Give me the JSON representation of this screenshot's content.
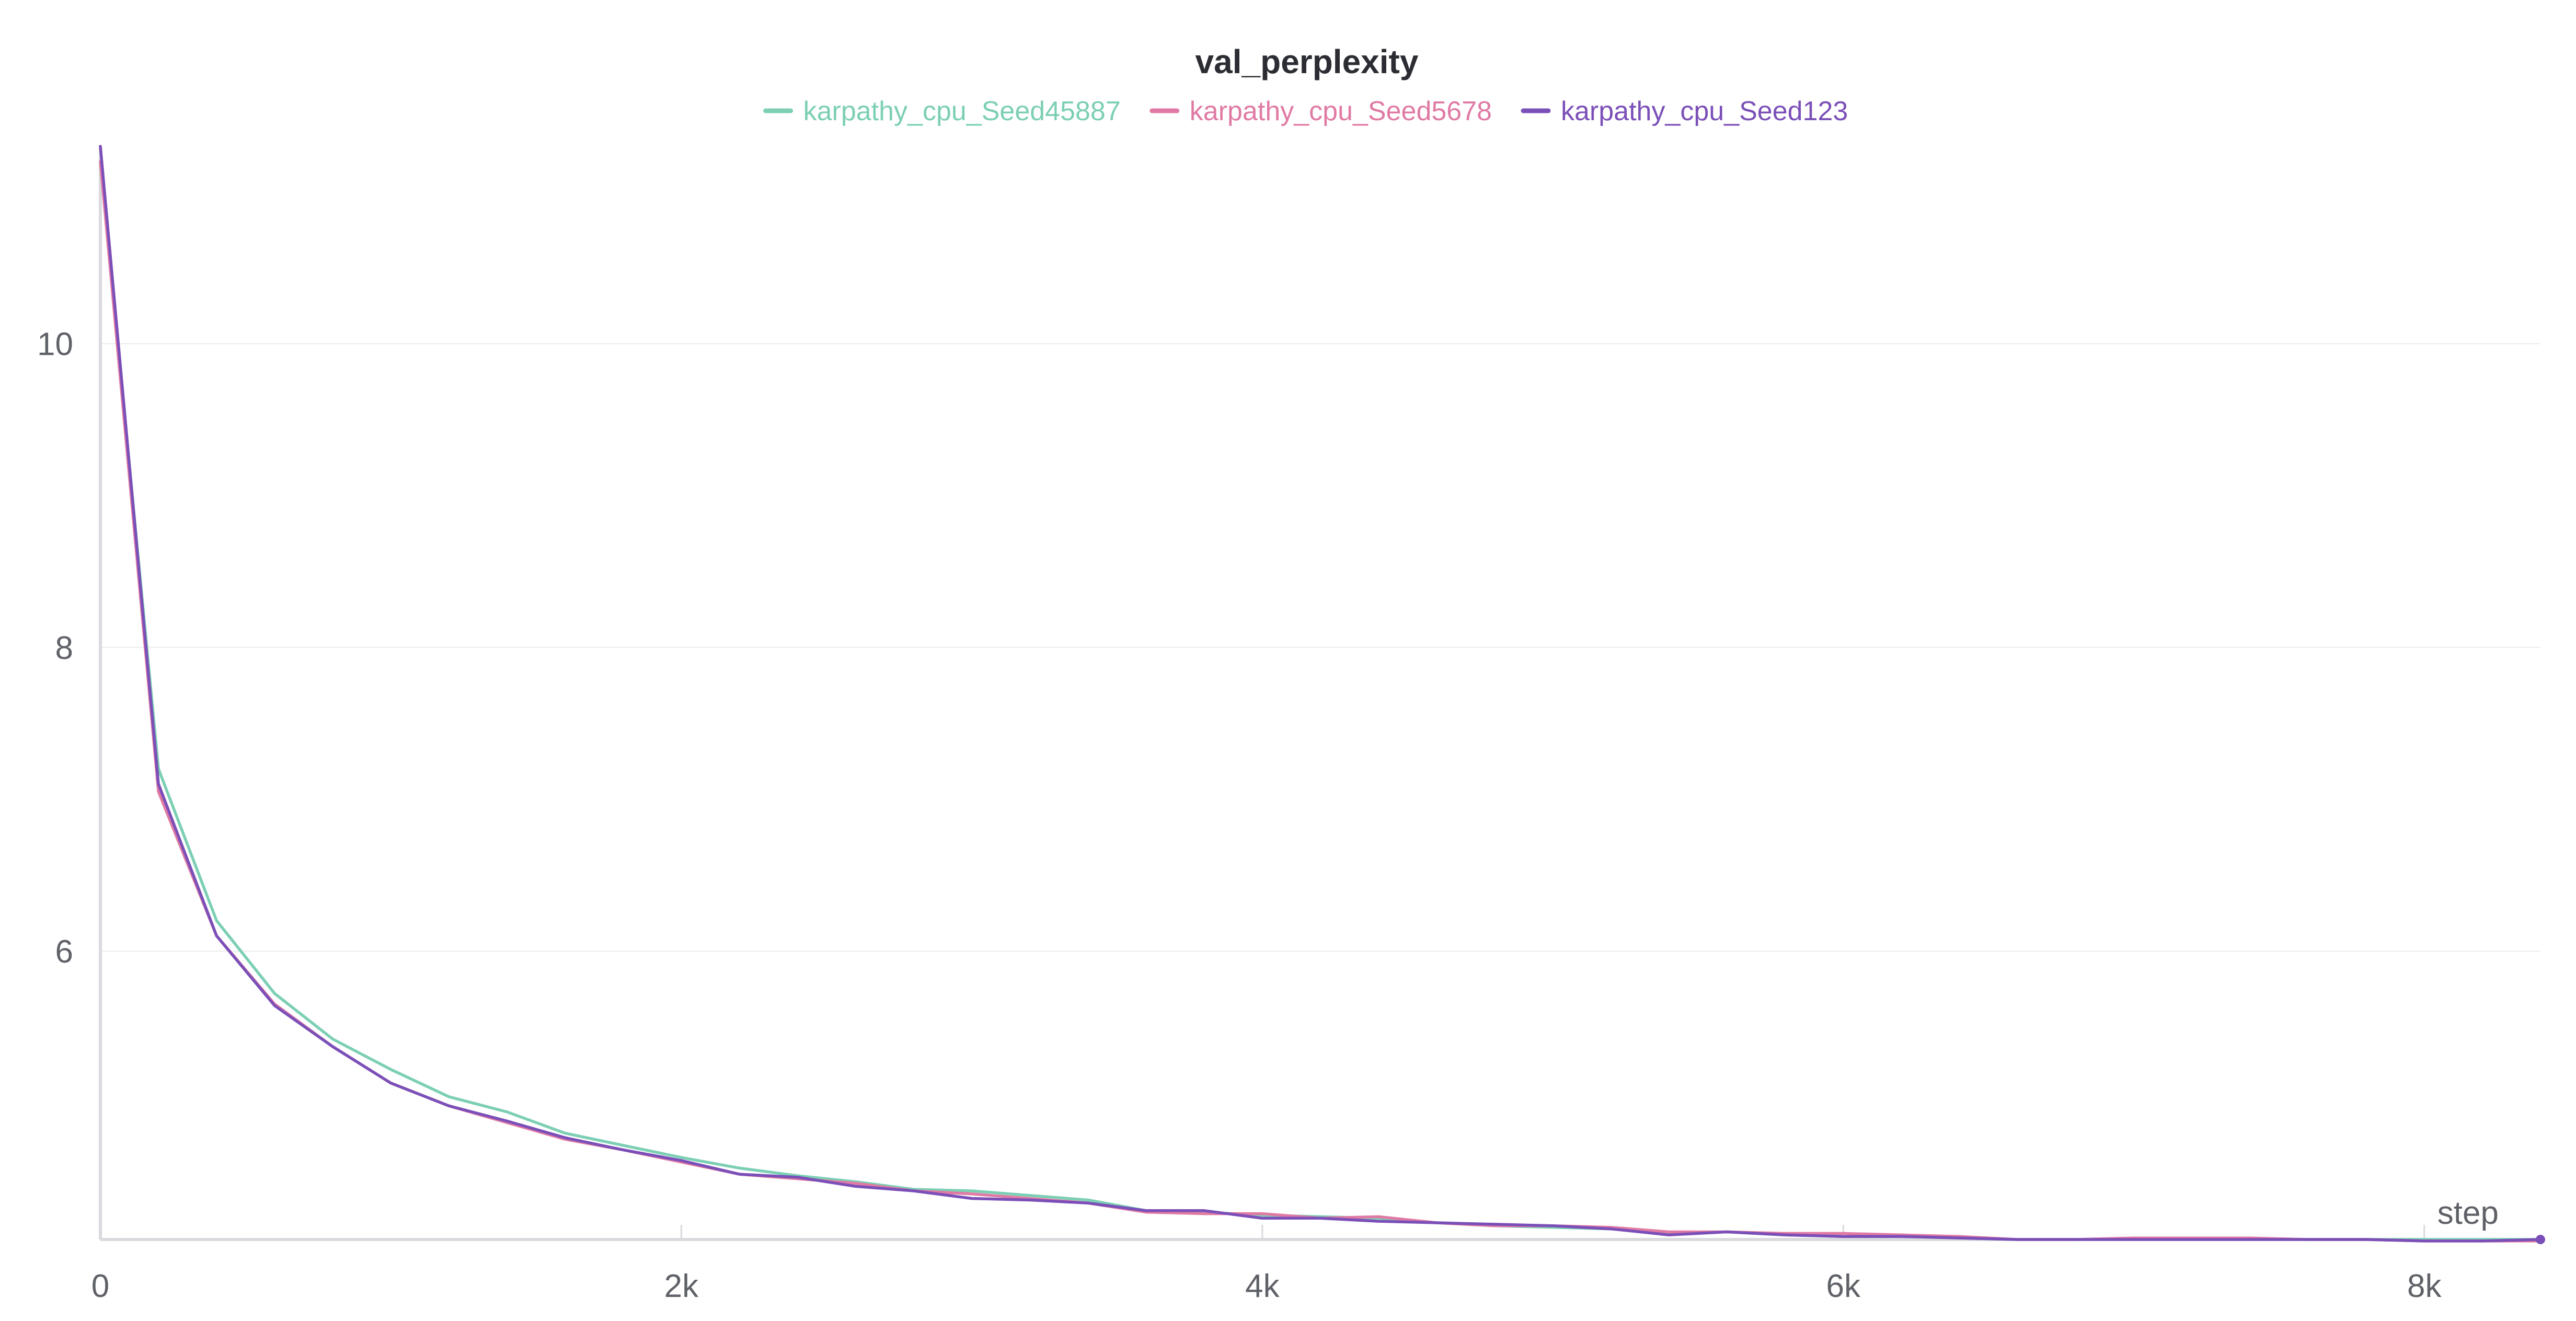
{
  "chart_data": {
    "type": "line",
    "title": "val_perplexity",
    "xlabel": "step",
    "ylabel": "",
    "xlim": [
      0,
      8400
    ],
    "ylim": [
      4.1,
      11.3
    ],
    "x_ticks": [
      0,
      2000,
      4000,
      6000,
      8000
    ],
    "x_tick_labels": [
      "0",
      "2k",
      "4k",
      "6k",
      "8k"
    ],
    "y_ticks": [
      6,
      8,
      10
    ],
    "y_tick_labels": [
      "6",
      "8",
      "10"
    ],
    "grid": true,
    "legend_position": "top-center",
    "x": [
      0,
      200,
      400,
      600,
      800,
      1000,
      1200,
      1400,
      1600,
      1800,
      2000,
      2200,
      2400,
      2600,
      2800,
      3000,
      3200,
      3400,
      3600,
      3800,
      4000,
      4200,
      4400,
      4600,
      4800,
      5000,
      5200,
      5400,
      5600,
      5800,
      6000,
      6200,
      6400,
      6600,
      6800,
      7000,
      7200,
      7400,
      7600,
      7800,
      8000,
      8200,
      8400
    ],
    "series": [
      {
        "name": "karpathy_cpu_Seed45887",
        "color": "#7ccfb4",
        "values": [
          11.2,
          7.2,
          6.2,
          5.72,
          5.42,
          5.22,
          5.04,
          4.94,
          4.8,
          4.72,
          4.64,
          4.57,
          4.52,
          4.48,
          4.43,
          4.42,
          4.39,
          4.36,
          4.29,
          4.28,
          4.26,
          4.25,
          4.24,
          4.21,
          4.19,
          4.18,
          4.17,
          4.14,
          4.15,
          4.13,
          4.12,
          4.12,
          4.11,
          4.1,
          4.1,
          4.1,
          4.1,
          4.1,
          4.1,
          4.1,
          4.1,
          4.1,
          4.1
        ]
      },
      {
        "name": "karpathy_cpu_Seed5678",
        "color": "#e07aa4",
        "values": [
          11.2,
          7.05,
          6.1,
          5.65,
          5.37,
          5.13,
          4.98,
          4.87,
          4.76,
          4.69,
          4.61,
          4.53,
          4.5,
          4.47,
          4.42,
          4.4,
          4.37,
          4.34,
          4.28,
          4.27,
          4.27,
          4.24,
          4.25,
          4.21,
          4.19,
          4.19,
          4.18,
          4.15,
          4.15,
          4.14,
          4.14,
          4.13,
          4.12,
          4.1,
          4.1,
          4.11,
          4.11,
          4.11,
          4.1,
          4.1,
          4.09,
          4.09,
          4.09
        ]
      },
      {
        "name": "karpathy_cpu_Seed123",
        "color": "#7b4fb8",
        "values": [
          11.3,
          7.1,
          6.1,
          5.64,
          5.37,
          5.13,
          4.98,
          4.88,
          4.77,
          4.69,
          4.62,
          4.53,
          4.51,
          4.45,
          4.42,
          4.37,
          4.36,
          4.34,
          4.29,
          4.29,
          4.24,
          4.24,
          4.22,
          4.21,
          4.2,
          4.19,
          4.17,
          4.13,
          4.15,
          4.13,
          4.12,
          4.12,
          4.11,
          4.1,
          4.1,
          4.1,
          4.1,
          4.1,
          4.1,
          4.1,
          4.09,
          4.09,
          4.1
        ]
      }
    ]
  }
}
